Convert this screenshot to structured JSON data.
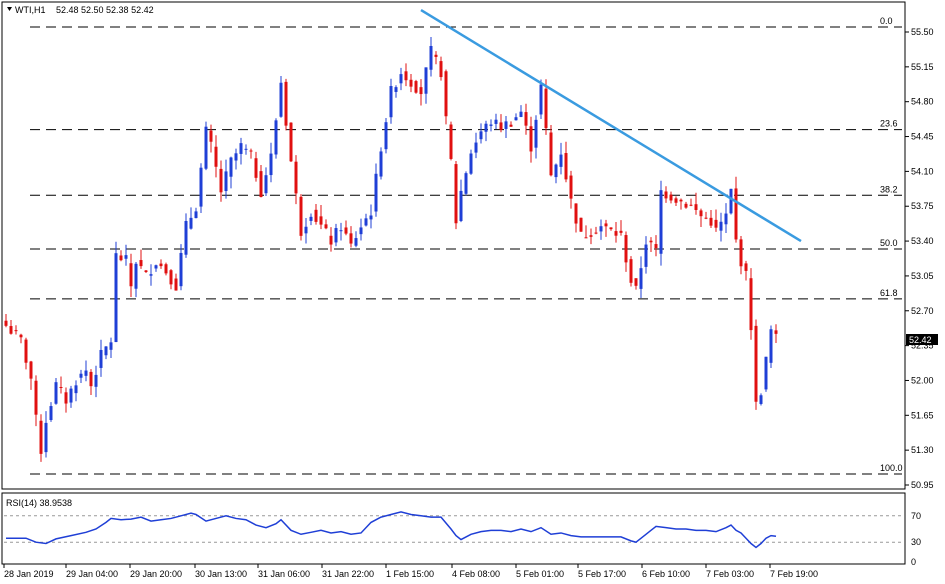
{
  "header": {
    "symbol": "WTI,H1",
    "ohlc": "52.48 52.50 52.38 52.42"
  },
  "price_tag": "52.42",
  "rsi": {
    "label": "RSI(14) 38.9538",
    "levels": [
      "70",
      "30",
      "0"
    ]
  },
  "colors": {
    "bull": "#1f3fd6",
    "bear": "#e01010",
    "trendline": "#3a9be0",
    "rsi_line": "#1f3fd6",
    "fib_line": "#000000",
    "tag_bg": "#000000"
  },
  "chart_data": [
    {
      "type": "candlestick",
      "ylim": [
        50.95,
        55.65
      ],
      "y_ticks": [
        "55.50",
        "55.15",
        "54.80",
        "54.45",
        "54.10",
        "53.75",
        "53.40",
        "53.05",
        "52.70",
        "52.35",
        "52.00",
        "51.65",
        "51.30",
        "50.95"
      ],
      "x_ticks": [
        "28 Jan 2019",
        "29 Jan 04:00",
        "29 Jan 20:00",
        "30 Jan 13:00",
        "31 Jan 06:00",
        "31 Jan 22:00",
        "1 Feb 15:00",
        "4 Feb 08:00",
        "5 Feb 01:00",
        "5 Feb 17:00",
        "6 Feb 10:00",
        "7 Feb 03:00",
        "7 Feb 19:00"
      ],
      "fib_levels": [
        {
          "label": "0.0",
          "value": 55.55
        },
        {
          "label": "23.6",
          "value": 54.52
        },
        {
          "label": "38.2",
          "value": 53.86
        },
        {
          "label": "50.0",
          "value": 53.32
        },
        {
          "label": "61.8",
          "value": 52.82
        },
        {
          "label": "100.0",
          "value": 51.06
        }
      ],
      "trendline": {
        "from": {
          "t": 83,
          "price": 55.72
        },
        "to": {
          "t": 159,
          "price": 53.4
        }
      },
      "waypoints": [
        [
          0,
          52.55
        ],
        [
          3,
          52.4
        ],
        [
          5,
          52.02
        ],
        [
          6,
          51.6
        ],
        [
          7,
          51.3
        ],
        [
          8,
          51.6
        ],
        [
          10,
          51.95
        ],
        [
          12,
          51.8
        ],
        [
          14,
          52.0
        ],
        [
          16,
          52.1
        ],
        [
          17,
          51.95
        ],
        [
          19,
          52.25
        ],
        [
          21,
          52.4
        ],
        [
          22,
          53.25
        ],
        [
          24,
          53.2
        ],
        [
          25,
          52.95
        ],
        [
          26,
          53.2
        ],
        [
          28,
          53.05
        ],
        [
          30,
          53.2
        ],
        [
          32,
          53.1
        ],
        [
          34,
          52.95
        ],
        [
          36,
          53.55
        ],
        [
          38,
          53.75
        ],
        [
          40,
          54.5
        ],
        [
          41,
          54.35
        ],
        [
          43,
          53.9
        ],
        [
          45,
          54.2
        ],
        [
          47,
          54.35
        ],
        [
          49,
          54.25
        ],
        [
          51,
          53.9
        ],
        [
          53,
          54.25
        ],
        [
          55,
          55.0
        ],
        [
          57,
          54.2
        ],
        [
          59,
          53.5
        ],
        [
          61,
          53.7
        ],
        [
          63,
          53.55
        ],
        [
          65,
          53.4
        ],
        [
          67,
          53.55
        ],
        [
          69,
          53.35
        ],
        [
          71,
          53.55
        ],
        [
          73,
          53.7
        ],
        [
          75,
          54.35
        ],
        [
          77,
          54.9
        ],
        [
          79,
          55.1
        ],
        [
          81,
          55.0
        ],
        [
          83,
          54.9
        ],
        [
          85,
          55.3
        ],
        [
          87,
          55.1
        ],
        [
          88,
          54.6
        ],
        [
          89,
          54.2
        ],
        [
          90,
          53.6
        ],
        [
          91,
          53.9
        ],
        [
          93,
          54.3
        ],
        [
          95,
          54.5
        ],
        [
          97,
          54.6
        ],
        [
          99,
          54.55
        ],
        [
          101,
          54.6
        ],
        [
          103,
          54.7
        ],
        [
          105,
          54.35
        ],
        [
          107,
          54.95
        ],
        [
          108,
          54.5
        ],
        [
          109,
          54.05
        ],
        [
          111,
          54.3
        ],
        [
          113,
          53.8
        ],
        [
          115,
          53.45
        ],
        [
          117,
          53.5
        ],
        [
          119,
          53.55
        ],
        [
          121,
          53.5
        ],
        [
          123,
          53.45
        ],
        [
          125,
          53.0
        ],
        [
          126,
          52.9
        ],
        [
          128,
          53.4
        ],
        [
          130,
          53.3
        ],
        [
          131,
          53.9
        ],
        [
          133,
          53.85
        ],
        [
          135,
          53.8
        ],
        [
          137,
          53.75
        ],
        [
          139,
          53.65
        ],
        [
          141,
          53.6
        ],
        [
          142,
          53.5
        ],
        [
          144,
          53.65
        ],
        [
          145,
          53.9
        ],
        [
          146,
          53.4
        ],
        [
          147,
          53.2
        ],
        [
          148,
          53.05
        ],
        [
          149,
          52.55
        ],
        [
          150,
          51.75
        ],
        [
          151,
          51.9
        ],
        [
          152,
          52.2
        ],
        [
          153,
          52.5
        ],
        [
          154,
          52.42
        ]
      ]
    },
    {
      "type": "line",
      "name": "RSI(14)",
      "ylim": [
        0,
        100
      ],
      "levels": [
        70,
        30
      ],
      "y_ticks": [
        "70",
        "30",
        "0"
      ],
      "values": [
        [
          0,
          36
        ],
        [
          4,
          36
        ],
        [
          6,
          30
        ],
        [
          8,
          28
        ],
        [
          10,
          35
        ],
        [
          13,
          40
        ],
        [
          16,
          45
        ],
        [
          18,
          50
        ],
        [
          20,
          60
        ],
        [
          21,
          66
        ],
        [
          23,
          64
        ],
        [
          25,
          65
        ],
        [
          27,
          68
        ],
        [
          29,
          62
        ],
        [
          31,
          64
        ],
        [
          33,
          66
        ],
        [
          35,
          70
        ],
        [
          37,
          74
        ],
        [
          38,
          72
        ],
        [
          40,
          62
        ],
        [
          42,
          66
        ],
        [
          44,
          70
        ],
        [
          46,
          66
        ],
        [
          48,
          64
        ],
        [
          50,
          56
        ],
        [
          52,
          52
        ],
        [
          54,
          58
        ],
        [
          55,
          64
        ],
        [
          57,
          48
        ],
        [
          59,
          42
        ],
        [
          61,
          45
        ],
        [
          63,
          48
        ],
        [
          65,
          44
        ],
        [
          67,
          46
        ],
        [
          69,
          42
        ],
        [
          71,
          44
        ],
        [
          73,
          60
        ],
        [
          75,
          68
        ],
        [
          77,
          72
        ],
        [
          79,
          76
        ],
        [
          81,
          72
        ],
        [
          83,
          70
        ],
        [
          85,
          68
        ],
        [
          87,
          68
        ],
        [
          89,
          50
        ],
        [
          90,
          40
        ],
        [
          91,
          34
        ],
        [
          93,
          42
        ],
        [
          95,
          46
        ],
        [
          97,
          48
        ],
        [
          99,
          48
        ],
        [
          101,
          46
        ],
        [
          103,
          50
        ],
        [
          105,
          46
        ],
        [
          107,
          52
        ],
        [
          109,
          42
        ],
        [
          111,
          44
        ],
        [
          113,
          40
        ],
        [
          115,
          38
        ],
        [
          117,
          38
        ],
        [
          119,
          38
        ],
        [
          121,
          38
        ],
        [
          123,
          38
        ],
        [
          125,
          32
        ],
        [
          126,
          30
        ],
        [
          128,
          42
        ],
        [
          129,
          48
        ],
        [
          130,
          54
        ],
        [
          132,
          52
        ],
        [
          134,
          50
        ],
        [
          136,
          50
        ],
        [
          138,
          48
        ],
        [
          140,
          48
        ],
        [
          142,
          46
        ],
        [
          144,
          52
        ],
        [
          145,
          56
        ],
        [
          146,
          48
        ],
        [
          147,
          44
        ],
        [
          148,
          36
        ],
        [
          149,
          28
        ],
        [
          150,
          22
        ],
        [
          151,
          28
        ],
        [
          152,
          36
        ],
        [
          153,
          40
        ],
        [
          154,
          39
        ]
      ]
    }
  ]
}
